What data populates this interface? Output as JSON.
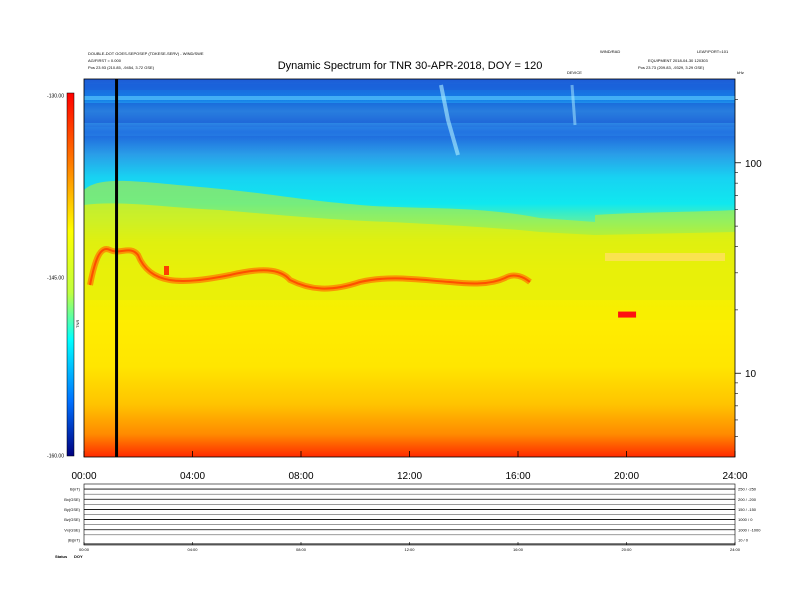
{
  "header": {
    "left_line1": "DOUBLE-DOT GOES-SEPOSEP (TDKESE-SERV) - WIND/SWE",
    "left_line2": "AG/FIRST = 0.000",
    "left_line3": "Pos   23.93 (210.85, -9454, 3.72 GSE)",
    "right_top_a": "WIND/RAD",
    "right_top_b": "LEAF/PORT=101",
    "right_line2": "EQUIPMENT 2018-04-30 120303",
    "right_line3": "Pos   23.73 (209.83, -9329, 3.29 GSE)",
    "mid_marker": "DEVICE",
    "corner_marker": "kHz"
  },
  "chart_data": {
    "type": "heatmap",
    "title": "Dynamic Spectrum for TNR 30-APR-2018, DOY = 120",
    "xlabel": "",
    "ylabel": "",
    "x_ticks": [
      "00:00",
      "04:00",
      "08:00",
      "12:00",
      "16:00",
      "20:00",
      "24:00"
    ],
    "xlim_hours": [
      0,
      24
    ],
    "y_ticks_right": [
      "100",
      "10"
    ],
    "y_scale": "log",
    "ylim_khz": [
      4,
      250
    ],
    "colorbar": {
      "ticks": [
        "-130.00",
        "-145.00",
        "-160.00"
      ],
      "label": "TNR",
      "colors": [
        "#ff0000",
        "#ff8000",
        "#ffff00",
        "#00ffff",
        "#0000ff",
        "#000080"
      ]
    },
    "features": {
      "vertical_black_line_hour": 1.2,
      "red_emission_band_khz": 35,
      "bright_spot_hour": 19.8,
      "bright_spot_khz": 19
    }
  },
  "strip_panel": {
    "rows": [
      {
        "label": "B(nT)",
        "right": "250 / -250"
      },
      {
        "label": "Bx(GSE)",
        "right": "200 / -200"
      },
      {
        "label": "By(GSE)",
        "right": "150 / -150"
      },
      {
        "label": "Bz(GSE)",
        "right": "1000 / 0"
      },
      {
        "label": "Vx(GSE)",
        "right": "1000 / -1000"
      },
      {
        "label": "|B|(nT)",
        "right": "10 / 0"
      }
    ],
    "x_ticks": [
      "00:00",
      "04:00",
      "08:00",
      "12:00",
      "16:00",
      "20:00",
      "24:00"
    ],
    "footer_left": "Status",
    "footer_val": "DOY"
  }
}
